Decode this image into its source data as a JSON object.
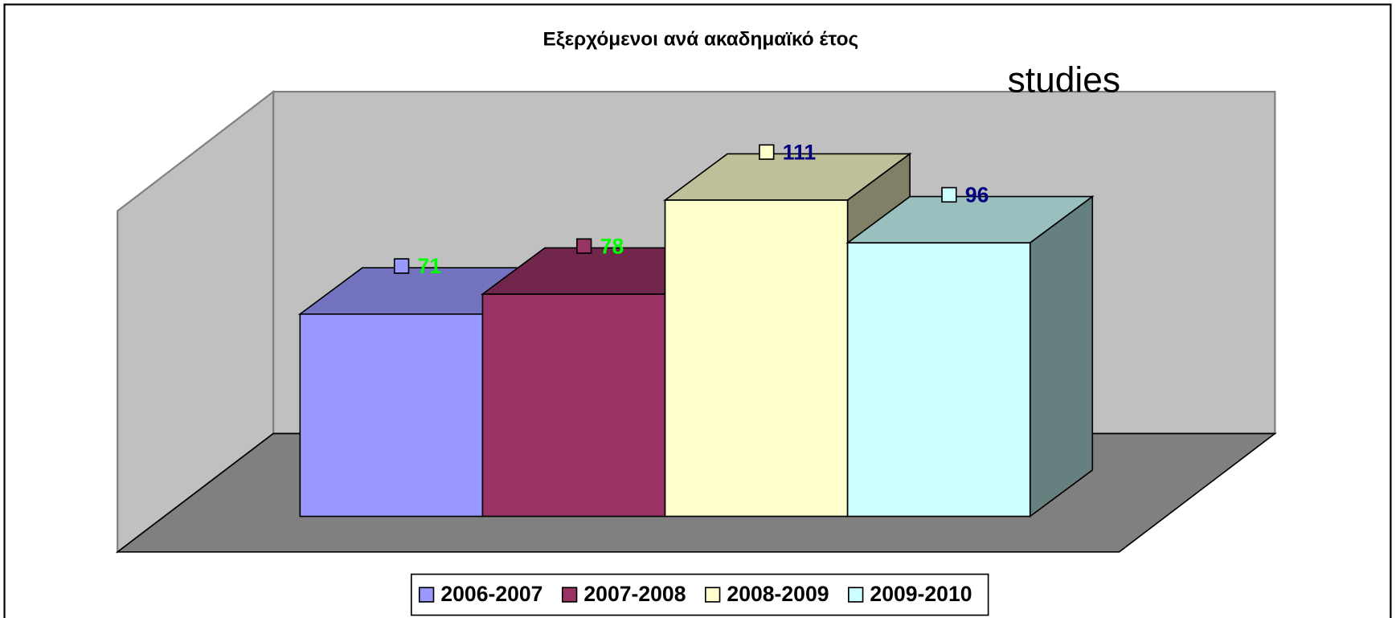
{
  "chart_data": {
    "type": "bar3d",
    "title": "Εξερχόμενοι ανά ακαδημαϊκό έτος",
    "annotation": "studies",
    "series": [
      {
        "name": "2006-2007",
        "color": "#9999ff",
        "label_color": "#00ff00",
        "values": [
          71
        ]
      },
      {
        "name": "2007-2008",
        "color": "#993366",
        "label_color": "#00ff00",
        "values": [
          78
        ]
      },
      {
        "name": "2008-2009",
        "color": "#ffffcc",
        "label_color": "#000080",
        "values": [
          111
        ]
      },
      {
        "name": "2009-2010",
        "color": "#ccffff",
        "label_color": "#000080",
        "values": [
          96
        ]
      }
    ],
    "legend": "bottom"
  }
}
